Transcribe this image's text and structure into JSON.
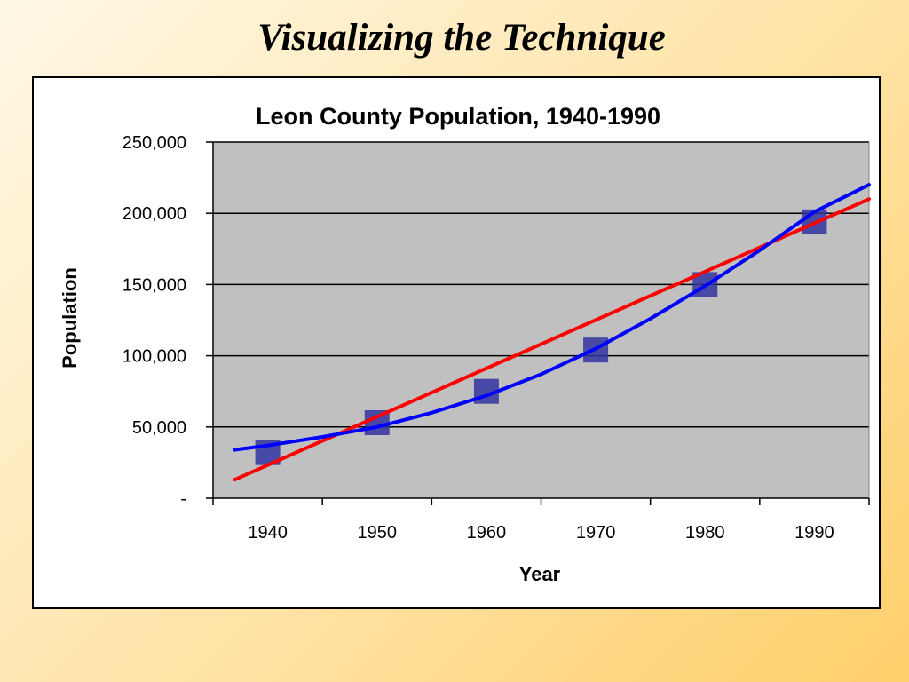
{
  "slide": {
    "title": "Visualizing the Technique"
  },
  "colors": {
    "plot_background": "#c0c0c0",
    "marker": "#3333a0",
    "linear_fit": "#ff0000",
    "curve_fit": "#0000ff",
    "gridline": "#000000"
  },
  "chart_data": {
    "type": "scatter",
    "title": "Leon County Population, 1940-1990",
    "xlabel": "Year",
    "ylabel": "Population",
    "grid": "horizontal",
    "xlim": [
      1935,
      1995
    ],
    "ylim": [
      0,
      250000
    ],
    "x_ticks": [
      1940,
      1950,
      1960,
      1970,
      1980,
      1990
    ],
    "x_tick_labels": [
      "1940",
      "1950",
      "1960",
      "1970",
      "1980",
      "1990"
    ],
    "y_ticks": [
      0,
      50000,
      100000,
      150000,
      200000,
      250000
    ],
    "y_tick_labels": [
      "-",
      "50,000",
      "100,000",
      "150,000",
      "200,000",
      "250,000"
    ],
    "series": [
      {
        "marker": "square",
        "x": [
          1940,
          1950,
          1960,
          1970,
          1980,
          1990
        ],
        "y": [
          32000,
          53000,
          75000,
          104000,
          150000,
          194000
        ]
      },
      {
        "style": "line",
        "color": "#ff0000",
        "x": [
          1937,
          1995
        ],
        "y": [
          13000,
          210000
        ]
      },
      {
        "style": "line",
        "color": "#0000ff",
        "x": [
          1937,
          1940,
          1945,
          1950,
          1955,
          1960,
          1965,
          1970,
          1975,
          1980,
          1985,
          1990,
          1995
        ],
        "y": [
          34000,
          37000,
          43000,
          50000,
          60000,
          72000,
          87000,
          105000,
          126000,
          149000,
          174000,
          201000,
          220000
        ]
      }
    ]
  }
}
